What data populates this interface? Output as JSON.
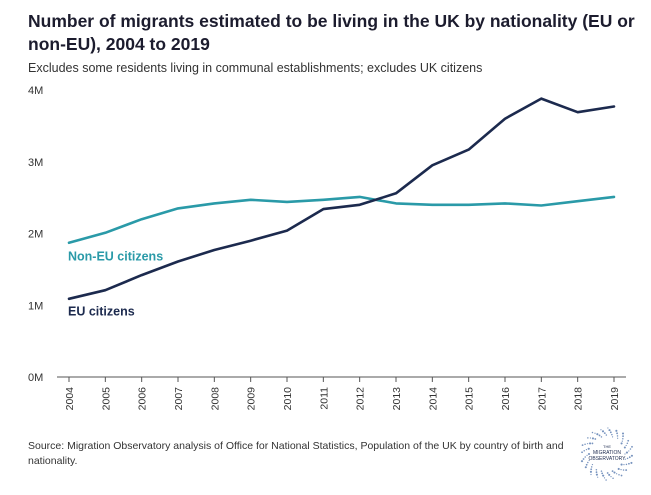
{
  "header": {
    "title": "Number of migrants estimated to be living in the UK by nationality (EU or non-EU), 2004 to 2019",
    "subtitle": "Excludes some residents living in communal establishments; excludes UK citizens"
  },
  "chart_data": {
    "type": "line",
    "x": [
      "2004",
      "2005",
      "2006",
      "2007",
      "2008",
      "2009",
      "2010",
      "2011",
      "2012",
      "2013",
      "2014",
      "2015",
      "2016",
      "2017",
      "2018",
      "2019"
    ],
    "ytick_labels": [
      "0M",
      "1M",
      "2M",
      "3M",
      "4M"
    ],
    "ylim": [
      0,
      4000000
    ],
    "yticks": [
      0,
      1000000,
      2000000,
      3000000,
      4000000
    ],
    "series": [
      {
        "name": "Non-EU citizens",
        "color": "#2a9aa8",
        "values": [
          1870000,
          2010000,
          2200000,
          2350000,
          2420000,
          2470000,
          2440000,
          2470000,
          2510000,
          2420000,
          2400000,
          2400000,
          2420000,
          2390000,
          2450000,
          2510000
        ]
      },
      {
        "name": "EU citizens",
        "color": "#1c2a4e",
        "values": [
          1090000,
          1210000,
          1420000,
          1610000,
          1770000,
          1900000,
          2040000,
          2340000,
          2400000,
          2560000,
          2950000,
          3170000,
          3600000,
          3880000,
          3690000,
          3770000
        ]
      }
    ],
    "grid": false
  },
  "footer": {
    "source": "Source: Migration Observatory analysis of Office for National Statistics, Population of the UK by country of birth and nationality."
  },
  "logo": {
    "line1": "THE",
    "line2": "MIGRATION",
    "line3": "OBSERVATORY"
  }
}
